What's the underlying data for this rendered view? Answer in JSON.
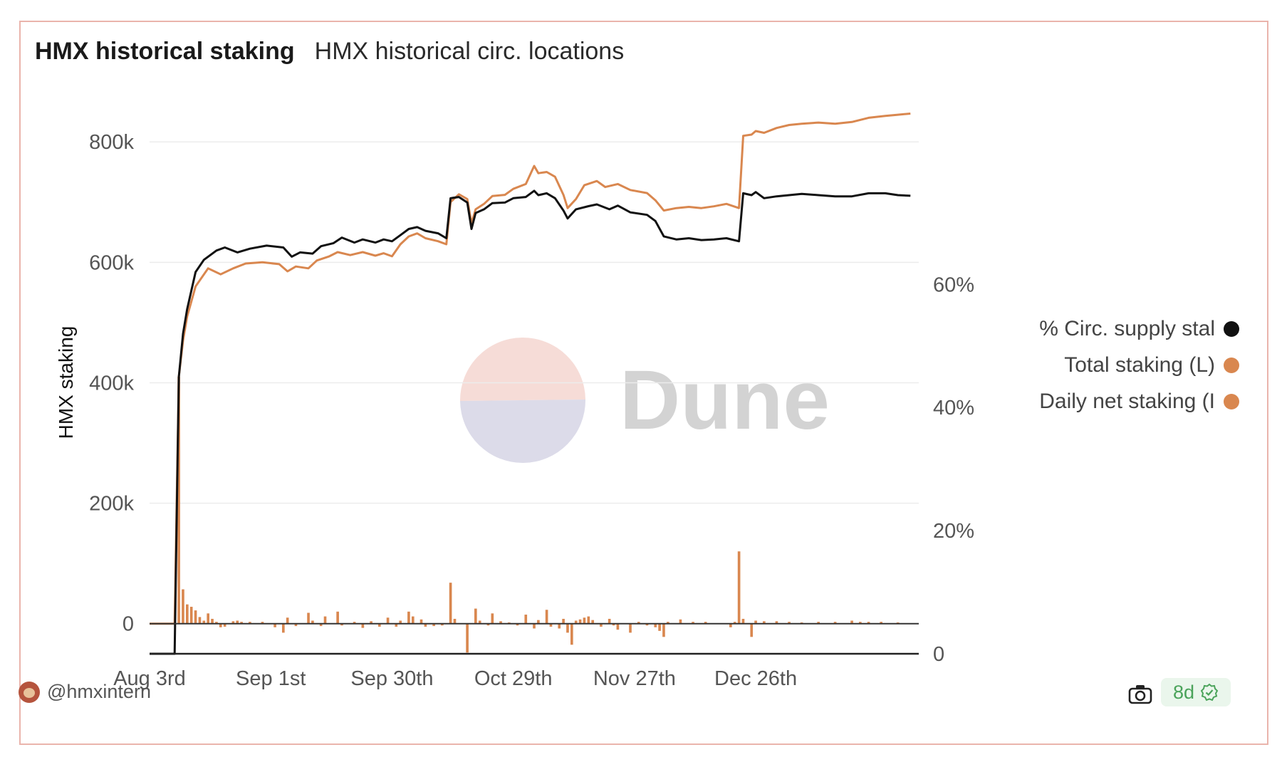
{
  "tabs": [
    {
      "label": "HMX historical staking",
      "active": true
    },
    {
      "label": "HMX historical circ. locations",
      "active": false
    }
  ],
  "watermark": {
    "text": "Dune"
  },
  "footer": {
    "user": "@hmxintern",
    "age_badge": "8d"
  },
  "colors": {
    "pct_line": "#111111",
    "total_line": "#d9874f",
    "daily_bar": "#d9874f",
    "grid": "#ececec",
    "axis": "#222222"
  },
  "chart_data": {
    "type": "line",
    "ylabel": "HMX staking",
    "ylim": [
      -50000,
      870000
    ],
    "y_ticks": [
      {
        "v": 0,
        "label": "0"
      },
      {
        "v": 200000,
        "label": "200k"
      },
      {
        "v": 400000,
        "label": "400k"
      },
      {
        "v": 600000,
        "label": "600k"
      },
      {
        "v": 800000,
        "label": "800k"
      }
    ],
    "y2lim": [
      0,
      0.9
    ],
    "y2_ticks": [
      {
        "v": 0,
        "label": "0"
      },
      {
        "v": 0.2,
        "label": "20%"
      },
      {
        "v": 0.4,
        "label": "40%"
      },
      {
        "v": 0.6,
        "label": "60%"
      }
    ],
    "x_start": "2023-08-03",
    "x_end": "2024-02-03",
    "x_ticks": [
      {
        "date": "2023-08-03",
        "label": "Aug 3rd"
      },
      {
        "date": "2023-09-01",
        "label": "Sep 1st"
      },
      {
        "date": "2023-09-30",
        "label": "Sep 30th"
      },
      {
        "date": "2023-10-29",
        "label": "Oct 29th"
      },
      {
        "date": "2023-11-27",
        "label": "Nov 27th"
      },
      {
        "date": "2023-12-26",
        "label": "Dec 26th"
      }
    ],
    "legend_position": "right",
    "series": [
      {
        "name": "% Circ. supply stal",
        "axis": "right",
        "kind": "line",
        "points": [
          [
            "2023-08-03",
            0.0
          ],
          [
            "2023-08-09",
            0.0
          ],
          [
            "2023-08-10",
            0.45
          ],
          [
            "2023-08-11",
            0.52
          ],
          [
            "2023-08-12",
            0.56
          ],
          [
            "2023-08-14",
            0.62
          ],
          [
            "2023-08-16",
            0.64
          ],
          [
            "2023-08-19",
            0.655
          ],
          [
            "2023-08-21",
            0.66
          ],
          [
            "2023-08-24",
            0.652
          ],
          [
            "2023-08-27",
            0.658
          ],
          [
            "2023-08-31",
            0.663
          ],
          [
            "2023-09-04",
            0.66
          ],
          [
            "2023-09-06",
            0.645
          ],
          [
            "2023-09-08",
            0.652
          ],
          [
            "2023-09-11",
            0.65
          ],
          [
            "2023-09-13",
            0.662
          ],
          [
            "2023-09-16",
            0.667
          ],
          [
            "2023-09-18",
            0.676
          ],
          [
            "2023-09-21",
            0.668
          ],
          [
            "2023-09-23",
            0.673
          ],
          [
            "2023-09-26",
            0.668
          ],
          [
            "2023-09-28",
            0.673
          ],
          [
            "2023-09-30",
            0.67
          ],
          [
            "2023-10-02",
            0.68
          ],
          [
            "2023-10-04",
            0.69
          ],
          [
            "2023-10-06",
            0.693
          ],
          [
            "2023-10-08",
            0.687
          ],
          [
            "2023-10-11",
            0.683
          ],
          [
            "2023-10-13",
            0.675
          ],
          [
            "2023-10-14",
            0.74
          ],
          [
            "2023-10-16",
            0.742
          ],
          [
            "2023-10-18",
            0.733
          ],
          [
            "2023-10-19",
            0.69
          ],
          [
            "2023-10-20",
            0.716
          ],
          [
            "2023-10-22",
            0.722
          ],
          [
            "2023-10-24",
            0.732
          ],
          [
            "2023-10-27",
            0.733
          ],
          [
            "2023-10-29",
            0.74
          ],
          [
            "2023-11-01",
            0.742
          ],
          [
            "2023-11-03",
            0.752
          ],
          [
            "2023-11-04",
            0.745
          ],
          [
            "2023-11-06",
            0.748
          ],
          [
            "2023-11-08",
            0.74
          ],
          [
            "2023-11-10",
            0.72
          ],
          [
            "2023-11-11",
            0.707
          ],
          [
            "2023-11-13",
            0.722
          ],
          [
            "2023-11-16",
            0.727
          ],
          [
            "2023-11-18",
            0.73
          ],
          [
            "2023-11-21",
            0.722
          ],
          [
            "2023-11-23",
            0.728
          ],
          [
            "2023-11-26",
            0.717
          ],
          [
            "2023-11-30",
            0.713
          ],
          [
            "2023-12-02",
            0.703
          ],
          [
            "2023-12-04",
            0.678
          ],
          [
            "2023-12-07",
            0.673
          ],
          [
            "2023-12-10",
            0.675
          ],
          [
            "2023-12-13",
            0.672
          ],
          [
            "2023-12-16",
            0.673
          ],
          [
            "2023-12-19",
            0.675
          ],
          [
            "2023-12-22",
            0.67
          ],
          [
            "2023-12-23",
            0.748
          ],
          [
            "2023-12-25",
            0.745
          ],
          [
            "2023-12-26",
            0.75
          ],
          [
            "2023-12-28",
            0.74
          ],
          [
            "2023-12-31",
            0.743
          ],
          [
            "2024-01-03",
            0.745
          ],
          [
            "2024-01-06",
            0.747
          ],
          [
            "2024-01-10",
            0.745
          ],
          [
            "2024-01-14",
            0.743
          ],
          [
            "2024-01-18",
            0.743
          ],
          [
            "2024-01-22",
            0.748
          ],
          [
            "2024-01-26",
            0.748
          ],
          [
            "2024-01-29",
            0.745
          ],
          [
            "2024-02-01",
            0.744
          ]
        ]
      },
      {
        "name": "Total staking (L)",
        "axis": "left",
        "kind": "line",
        "points": [
          [
            "2023-08-03",
            0
          ],
          [
            "2023-08-09",
            0
          ],
          [
            "2023-08-10",
            410000
          ],
          [
            "2023-08-11",
            470000
          ],
          [
            "2023-08-12",
            510000
          ],
          [
            "2023-08-14",
            560000
          ],
          [
            "2023-08-17",
            590000
          ],
          [
            "2023-08-20",
            580000
          ],
          [
            "2023-08-23",
            590000
          ],
          [
            "2023-08-26",
            598000
          ],
          [
            "2023-08-30",
            600000
          ],
          [
            "2023-09-03",
            597000
          ],
          [
            "2023-09-05",
            585000
          ],
          [
            "2023-09-07",
            593000
          ],
          [
            "2023-09-10",
            590000
          ],
          [
            "2023-09-12",
            603000
          ],
          [
            "2023-09-15",
            610000
          ],
          [
            "2023-09-17",
            617000
          ],
          [
            "2023-09-20",
            612000
          ],
          [
            "2023-09-23",
            617000
          ],
          [
            "2023-09-26",
            611000
          ],
          [
            "2023-09-28",
            615000
          ],
          [
            "2023-09-30",
            610000
          ],
          [
            "2023-10-02",
            630000
          ],
          [
            "2023-10-04",
            643000
          ],
          [
            "2023-10-06",
            648000
          ],
          [
            "2023-10-08",
            640000
          ],
          [
            "2023-10-11",
            635000
          ],
          [
            "2023-10-13",
            630000
          ],
          [
            "2023-10-14",
            700000
          ],
          [
            "2023-10-16",
            713000
          ],
          [
            "2023-10-18",
            705000
          ],
          [
            "2023-10-19",
            665000
          ],
          [
            "2023-10-20",
            688000
          ],
          [
            "2023-10-22",
            697000
          ],
          [
            "2023-10-24",
            710000
          ],
          [
            "2023-10-27",
            712000
          ],
          [
            "2023-10-29",
            722000
          ],
          [
            "2023-11-01",
            730000
          ],
          [
            "2023-11-03",
            760000
          ],
          [
            "2023-11-04",
            748000
          ],
          [
            "2023-11-06",
            750000
          ],
          [
            "2023-11-08",
            742000
          ],
          [
            "2023-11-10",
            712000
          ],
          [
            "2023-11-11",
            690000
          ],
          [
            "2023-11-13",
            705000
          ],
          [
            "2023-11-15",
            728000
          ],
          [
            "2023-11-18",
            735000
          ],
          [
            "2023-11-20",
            725000
          ],
          [
            "2023-11-23",
            730000
          ],
          [
            "2023-11-26",
            720000
          ],
          [
            "2023-11-30",
            715000
          ],
          [
            "2023-12-02",
            703000
          ],
          [
            "2023-12-04",
            686000
          ],
          [
            "2023-12-07",
            690000
          ],
          [
            "2023-12-10",
            692000
          ],
          [
            "2023-12-13",
            690000
          ],
          [
            "2023-12-16",
            693000
          ],
          [
            "2023-12-19",
            697000
          ],
          [
            "2023-12-22",
            690000
          ],
          [
            "2023-12-23",
            810000
          ],
          [
            "2023-12-25",
            812000
          ],
          [
            "2023-12-26",
            818000
          ],
          [
            "2023-12-28",
            815000
          ],
          [
            "2023-12-31",
            823000
          ],
          [
            "2024-01-03",
            828000
          ],
          [
            "2024-01-06",
            830000
          ],
          [
            "2024-01-10",
            832000
          ],
          [
            "2024-01-14",
            830000
          ],
          [
            "2024-01-18",
            833000
          ],
          [
            "2024-01-22",
            840000
          ],
          [
            "2024-01-26",
            843000
          ],
          [
            "2024-01-29",
            845000
          ],
          [
            "2024-02-01",
            847000
          ]
        ]
      },
      {
        "name": "Daily net staking (I",
        "axis": "left",
        "kind": "bar",
        "points": [
          [
            "2023-08-10",
            410000
          ],
          [
            "2023-08-11",
            57000
          ],
          [
            "2023-08-12",
            32000
          ],
          [
            "2023-08-13",
            28000
          ],
          [
            "2023-08-14",
            22000
          ],
          [
            "2023-08-15",
            11000
          ],
          [
            "2023-08-16",
            5000
          ],
          [
            "2023-08-17",
            17000
          ],
          [
            "2023-08-18",
            8000
          ],
          [
            "2023-08-19",
            3000
          ],
          [
            "2023-08-20",
            -6000
          ],
          [
            "2023-08-21",
            -5000
          ],
          [
            "2023-08-23",
            4000
          ],
          [
            "2023-08-24",
            5000
          ],
          [
            "2023-08-25",
            3000
          ],
          [
            "2023-08-27",
            3000
          ],
          [
            "2023-08-30",
            3000
          ],
          [
            "2023-09-02",
            -6000
          ],
          [
            "2023-09-04",
            -15000
          ],
          [
            "2023-09-05",
            10000
          ],
          [
            "2023-09-07",
            -4000
          ],
          [
            "2023-09-10",
            18000
          ],
          [
            "2023-09-11",
            5000
          ],
          [
            "2023-09-13",
            -4000
          ],
          [
            "2023-09-14",
            12000
          ],
          [
            "2023-09-17",
            20000
          ],
          [
            "2023-09-18",
            -3000
          ],
          [
            "2023-09-21",
            3000
          ],
          [
            "2023-09-23",
            -7000
          ],
          [
            "2023-09-25",
            4000
          ],
          [
            "2023-09-27",
            -5000
          ],
          [
            "2023-09-29",
            10000
          ],
          [
            "2023-10-01",
            -5000
          ],
          [
            "2023-10-02",
            5000
          ],
          [
            "2023-10-04",
            20000
          ],
          [
            "2023-10-05",
            12000
          ],
          [
            "2023-10-07",
            7000
          ],
          [
            "2023-10-08",
            -5000
          ],
          [
            "2023-10-10",
            -4000
          ],
          [
            "2023-10-12",
            -3000
          ],
          [
            "2023-10-14",
            68000
          ],
          [
            "2023-10-15",
            8000
          ],
          [
            "2023-10-18",
            -48000
          ],
          [
            "2023-10-20",
            25000
          ],
          [
            "2023-10-21",
            5000
          ],
          [
            "2023-10-23",
            -3000
          ],
          [
            "2023-10-24",
            17000
          ],
          [
            "2023-10-26",
            4000
          ],
          [
            "2023-10-28",
            2000
          ],
          [
            "2023-10-30",
            -3000
          ],
          [
            "2023-11-01",
            15000
          ],
          [
            "2023-11-03",
            -8000
          ],
          [
            "2023-11-04",
            6000
          ],
          [
            "2023-11-06",
            23000
          ],
          [
            "2023-11-07",
            -5000
          ],
          [
            "2023-11-09",
            -8000
          ],
          [
            "2023-11-10",
            8000
          ],
          [
            "2023-11-11",
            -15000
          ],
          [
            "2023-11-12",
            -35000
          ],
          [
            "2023-11-13",
            5000
          ],
          [
            "2023-11-14",
            7000
          ],
          [
            "2023-11-15",
            10000
          ],
          [
            "2023-11-16",
            12000
          ],
          [
            "2023-11-17",
            6000
          ],
          [
            "2023-11-19",
            -5000
          ],
          [
            "2023-11-21",
            8000
          ],
          [
            "2023-11-22",
            -3000
          ],
          [
            "2023-11-23",
            -10000
          ],
          [
            "2023-11-26",
            -15000
          ],
          [
            "2023-11-28",
            3000
          ],
          [
            "2023-11-30",
            -3000
          ],
          [
            "2023-12-02",
            -6000
          ],
          [
            "2023-12-03",
            -12000
          ],
          [
            "2023-12-04",
            -22000
          ],
          [
            "2023-12-05",
            3000
          ],
          [
            "2023-12-08",
            7000
          ],
          [
            "2023-12-11",
            3000
          ],
          [
            "2023-12-14",
            3000
          ],
          [
            "2023-12-20",
            -6000
          ],
          [
            "2023-12-21",
            3000
          ],
          [
            "2023-12-22",
            120000
          ],
          [
            "2023-12-23",
            8000
          ],
          [
            "2023-12-25",
            -22000
          ],
          [
            "2023-12-26",
            5000
          ],
          [
            "2023-12-28",
            4000
          ],
          [
            "2023-12-31",
            4000
          ],
          [
            "2024-01-03",
            3000
          ],
          [
            "2024-01-06",
            2000
          ],
          [
            "2024-01-10",
            3000
          ],
          [
            "2024-01-14",
            3000
          ],
          [
            "2024-01-18",
            5000
          ],
          [
            "2024-01-20",
            3000
          ],
          [
            "2024-01-22",
            3000
          ],
          [
            "2024-01-25",
            3000
          ],
          [
            "2024-01-29",
            2000
          ]
        ]
      }
    ]
  }
}
